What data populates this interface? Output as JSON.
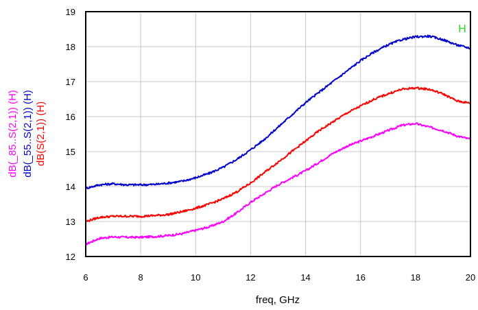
{
  "chart_data": {
    "type": "line",
    "xlabel": "freq, GHz",
    "xlim": [
      6,
      20
    ],
    "ylim": [
      12,
      19
    ],
    "xticks": [
      "6",
      "8",
      "10",
      "12",
      "14",
      "16",
      "18",
      "20"
    ],
    "yticks": [
      "12",
      "13",
      "14",
      "15",
      "16",
      "17",
      "18",
      "19"
    ],
    "grid": true,
    "corner_label": "H",
    "series": [
      {
        "name": "dB(_85..S(2,1)) (H)",
        "color": "#ff00ff",
        "x": [
          6,
          6.5,
          7,
          7.5,
          8,
          8.5,
          9,
          9.5,
          10,
          10.5,
          11,
          11.5,
          12,
          12.5,
          13,
          13.5,
          14,
          14.5,
          15,
          15.5,
          16,
          16.5,
          17,
          17.5,
          18,
          18.5,
          19,
          19.5,
          20
        ],
        "values": [
          12.35,
          12.52,
          12.56,
          12.55,
          12.55,
          12.57,
          12.6,
          12.65,
          12.75,
          12.85,
          13.0,
          13.25,
          13.55,
          13.8,
          14.05,
          14.25,
          14.45,
          14.7,
          14.95,
          15.15,
          15.3,
          15.45,
          15.6,
          15.75,
          15.8,
          15.7,
          15.6,
          15.45,
          15.35
        ]
      },
      {
        "name": "dB(_55..S(2,1)) (H)",
        "color": "#0000cc",
        "x": [
          6,
          6.5,
          7,
          7.5,
          8,
          8.5,
          9,
          9.5,
          10,
          10.5,
          11,
          11.5,
          12,
          12.5,
          13,
          13.5,
          14,
          14.5,
          15,
          15.5,
          16,
          16.5,
          17,
          17.5,
          18,
          18.5,
          19,
          19.5,
          20
        ],
        "values": [
          13.95,
          14.05,
          14.08,
          14.05,
          14.05,
          14.06,
          14.1,
          14.15,
          14.25,
          14.38,
          14.55,
          14.78,
          15.05,
          15.35,
          15.7,
          16.05,
          16.4,
          16.7,
          17.0,
          17.3,
          17.6,
          17.85,
          18.05,
          18.2,
          18.28,
          18.3,
          18.2,
          18.05,
          17.95
        ]
      },
      {
        "name": "dB(S(2,1)) (H)",
        "color": "#ff0000",
        "x": [
          6,
          6.5,
          7,
          7.5,
          8,
          8.5,
          9,
          9.5,
          10,
          10.5,
          11,
          11.5,
          12,
          12.5,
          13,
          13.5,
          14,
          14.5,
          15,
          15.5,
          16,
          16.5,
          17,
          17.5,
          18,
          18.5,
          19,
          19.5,
          20
        ],
        "values": [
          13.0,
          13.12,
          13.15,
          13.15,
          13.15,
          13.17,
          13.2,
          13.28,
          13.38,
          13.5,
          13.65,
          13.85,
          14.1,
          14.4,
          14.7,
          15.0,
          15.3,
          15.6,
          15.85,
          16.1,
          16.3,
          16.5,
          16.65,
          16.78,
          16.82,
          16.78,
          16.65,
          16.45,
          16.38
        ]
      }
    ]
  }
}
